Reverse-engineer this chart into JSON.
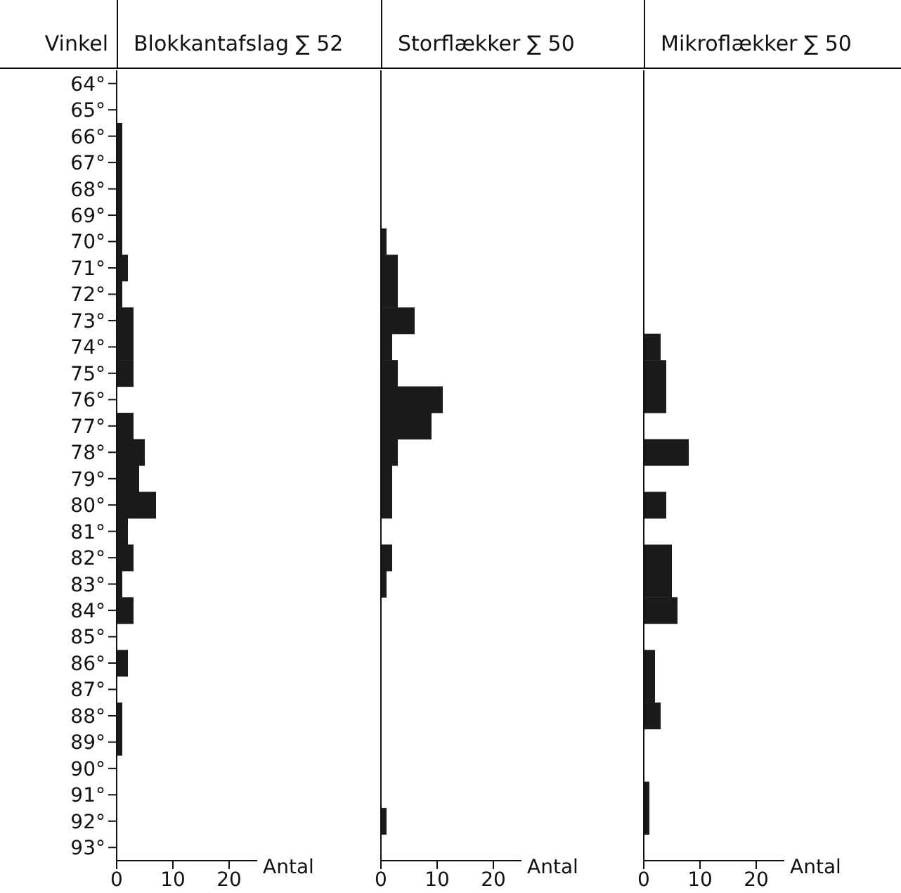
{
  "chart_data": [
    {
      "type": "bar",
      "orientation": "horizontal",
      "title": "Blokkantafslag ∑ 52",
      "ylabel": "Vinkel",
      "xlabel": "Antal",
      "color": "#1a1a1a",
      "categories": [
        "64°",
        "65°",
        "66°",
        "67°",
        "68°",
        "69°",
        "70°",
        "71°",
        "72°",
        "73°",
        "74°",
        "75°",
        "76°",
        "77°",
        "78°",
        "79°",
        "80°",
        "81°",
        "82°",
        "83°",
        "84°",
        "85°",
        "86°",
        "87°",
        "88°",
        "89°",
        "90°",
        "91°",
        "92°",
        "93°"
      ],
      "values": [
        0,
        0,
        1,
        1,
        1,
        1,
        1,
        2,
        1,
        3,
        3,
        3,
        0,
        3,
        5,
        4,
        7,
        2,
        3,
        1,
        3,
        0,
        2,
        0,
        1,
        1,
        0,
        0,
        0,
        0
      ],
      "xlim": [
        0,
        25
      ],
      "xticks": [
        0,
        10,
        20
      ]
    },
    {
      "type": "bar",
      "orientation": "horizontal",
      "title": "Storflækker ∑ 50",
      "xlabel": "Antal",
      "color": "#1a1a1a",
      "tick_labels": "x",
      "values": [
        0,
        0,
        0,
        0,
        0,
        0,
        1,
        3,
        3,
        6,
        2,
        3,
        11,
        9,
        3,
        2,
        2,
        0,
        2,
        1,
        0,
        0,
        0,
        0,
        0,
        0,
        0,
        0,
        1,
        0
      ],
      "xlim": [
        0,
        25
      ],
      "xticks": [
        0,
        10,
        20
      ]
    },
    {
      "type": "bar",
      "orientation": "horizontal",
      "title": "Mikroflækker ∑ 50",
      "xlabel": "Antal",
      "color": "#1a1a1a",
      "tick_labels": "x",
      "values": [
        0,
        0,
        0,
        0,
        0,
        0,
        0,
        0,
        0,
        0,
        3,
        4,
        4,
        0,
        8,
        0,
        4,
        0,
        5,
        5,
        6,
        0,
        2,
        2,
        3,
        0,
        0,
        1,
        1,
        0
      ],
      "xlim": [
        0,
        25
      ],
      "xticks": [
        0,
        10,
        20
      ]
    }
  ]
}
